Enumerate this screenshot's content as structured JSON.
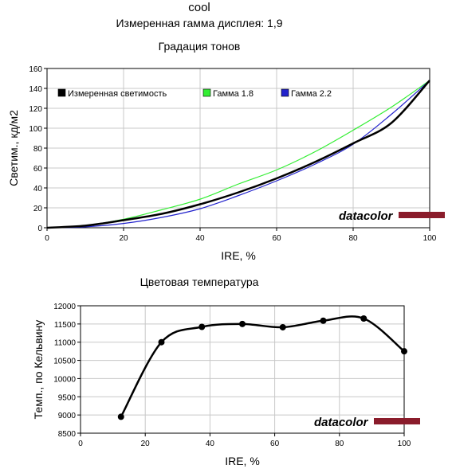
{
  "header": {
    "title": "cool",
    "subtitle": "Измеренная гамма дисплея: 1,9"
  },
  "watermark": "datacolor",
  "chart_data": [
    {
      "type": "line",
      "title": "Градация тонов",
      "xlabel": "IRE, %",
      "ylabel": "Светим., кд/м2",
      "xlim": [
        0,
        100
      ],
      "ylim": [
        0,
        160
      ],
      "x_ticks": [
        0,
        20,
        40,
        60,
        80,
        100
      ],
      "y_ticks": [
        0,
        20,
        40,
        60,
        80,
        100,
        120,
        140,
        160
      ],
      "grid": true,
      "legend_position": "top",
      "x": [
        0,
        10,
        20,
        30,
        40,
        50,
        60,
        70,
        80,
        90,
        100
      ],
      "series": [
        {
          "name": "Измеренная светимость",
          "color": "#000000",
          "values": [
            0,
            2.1,
            7.6,
            14.0,
            23.6,
            35.5,
            49.6,
            66.0,
            84.8,
            105.3,
            148.0
          ]
        },
        {
          "name": "Гамма 1.8",
          "color": "#33ee33",
          "values": [
            0,
            2.3,
            8.5,
            18.1,
            28.7,
            43.9,
            58.1,
            76.3,
            98.0,
            121.2,
            148.0
          ]
        },
        {
          "name": "Гамма 2.2",
          "color": "#2222cc",
          "values": [
            0,
            0.9,
            4.3,
            10.4,
            19.1,
            32.3,
            47.1,
            63.8,
            83.9,
            114.0,
            148.0
          ]
        }
      ]
    },
    {
      "type": "line",
      "title": "Цветовая температура",
      "xlabel": "IRE, %",
      "ylabel": "Темп., по Кельвину",
      "xlim": [
        0,
        100
      ],
      "ylim": [
        8500,
        12000
      ],
      "x_ticks": [
        0,
        20,
        40,
        60,
        80,
        100
      ],
      "y_ticks": [
        8500,
        9000,
        9500,
        10000,
        10500,
        11000,
        11500,
        12000
      ],
      "grid": true,
      "series": [
        {
          "color": "#000000",
          "x": [
            12.5,
            25,
            37.5,
            50,
            62.5,
            75,
            87.5,
            100
          ],
          "values": [
            8950,
            11000,
            11420,
            11500,
            11410,
            11590,
            11650,
            10750
          ]
        }
      ]
    }
  ]
}
